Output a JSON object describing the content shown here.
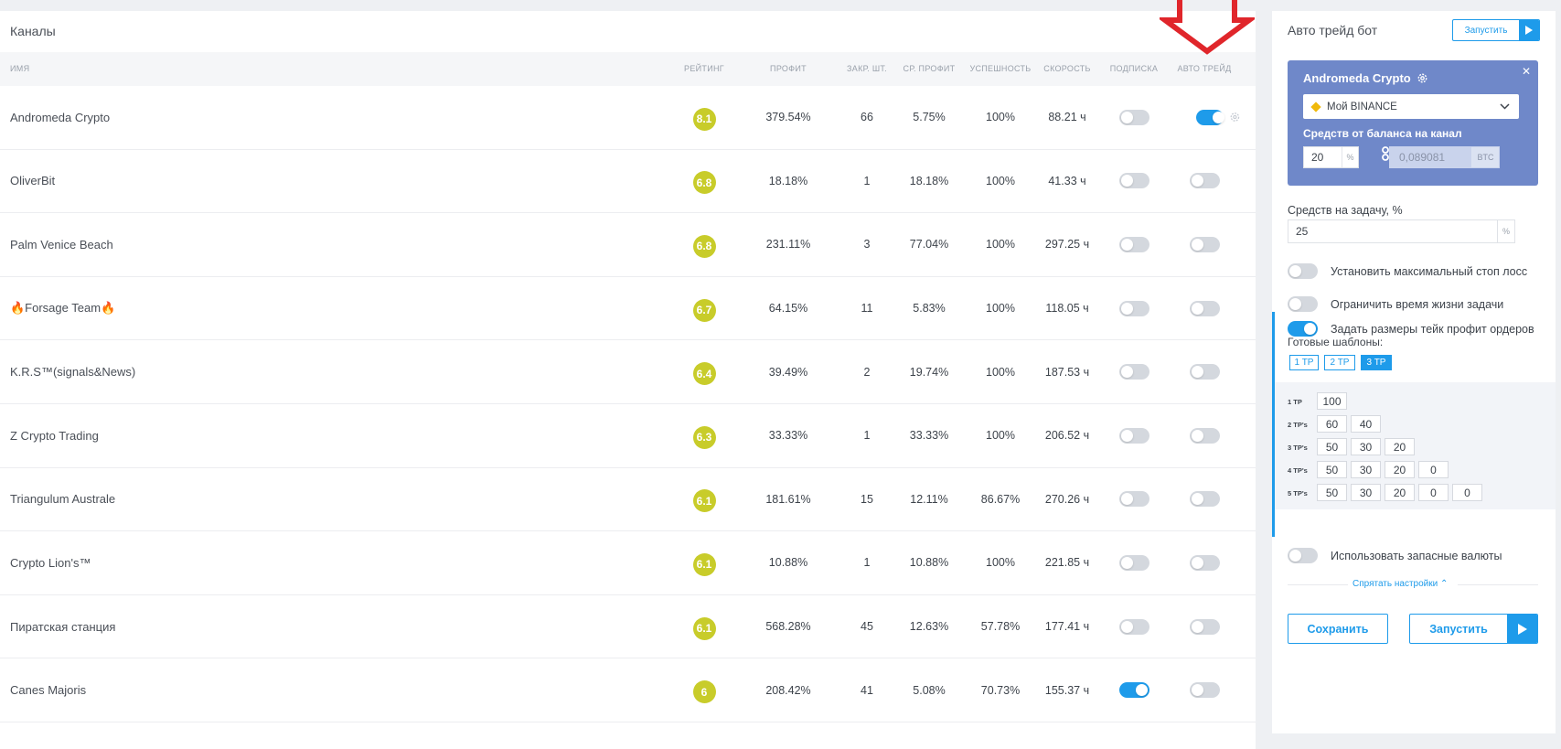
{
  "channels": {
    "title": "Каналы",
    "columns": [
      "ИМЯ",
      "РЕЙТИНГ",
      "ПРОФИТ",
      "ЗАКР. ШТ.",
      "СР. ПРОФИТ",
      "УСПЕШНОСТЬ",
      "СКОРОСТЬ",
      "ПОДПИСКА",
      "АВТО ТРЕЙД"
    ],
    "rows": [
      {
        "name": "Andromeda Crypto",
        "rating": "8.1",
        "profit": "379.54%",
        "closed": "66",
        "avg_profit": "5.75%",
        "success": "100%",
        "speed": "88.21 ч",
        "subscribed": false,
        "auto_trade": true
      },
      {
        "name": "OliverBit",
        "rating": "6.8",
        "profit": "18.18%",
        "closed": "1",
        "avg_profit": "18.18%",
        "success": "100%",
        "speed": "41.33 ч",
        "subscribed": false,
        "auto_trade": false
      },
      {
        "name": "Palm Venice Beach",
        "rating": "6.8",
        "profit": "231.11%",
        "closed": "3",
        "avg_profit": "77.04%",
        "success": "100%",
        "speed": "297.25 ч",
        "subscribed": false,
        "auto_trade": false
      },
      {
        "name": "🔥Forsage Team🔥",
        "rating": "6.7",
        "profit": "64.15%",
        "closed": "11",
        "avg_profit": "5.83%",
        "success": "100%",
        "speed": "118.05 ч",
        "subscribed": false,
        "auto_trade": false
      },
      {
        "name": "K.R.S™(signals&News)",
        "rating": "6.4",
        "profit": "39.49%",
        "closed": "2",
        "avg_profit": "19.74%",
        "success": "100%",
        "speed": "187.53 ч",
        "subscribed": false,
        "auto_trade": false
      },
      {
        "name": "Z Crypto Trading",
        "rating": "6.3",
        "profit": "33.33%",
        "closed": "1",
        "avg_profit": "33.33%",
        "success": "100%",
        "speed": "206.52 ч",
        "subscribed": false,
        "auto_trade": false
      },
      {
        "name": "Triangulum Australe",
        "rating": "6.1",
        "profit": "181.61%",
        "closed": "15",
        "avg_profit": "12.11%",
        "success": "86.67%",
        "speed": "270.26 ч",
        "subscribed": false,
        "auto_trade": false
      },
      {
        "name": "Crypto Lion's™",
        "rating": "6.1",
        "profit": "10.88%",
        "closed": "1",
        "avg_profit": "10.88%",
        "success": "100%",
        "speed": "221.85 ч",
        "subscribed": false,
        "auto_trade": false
      },
      {
        "name": "Пиратская станция",
        "rating": "6.1",
        "profit": "568.28%",
        "closed": "45",
        "avg_profit": "12.63%",
        "success": "57.78%",
        "speed": "177.41 ч",
        "subscribed": false,
        "auto_trade": false
      },
      {
        "name": "Canes Majoris",
        "rating": "6",
        "profit": "208.42%",
        "closed": "41",
        "avg_profit": "5.08%",
        "success": "70.73%",
        "speed": "155.37 ч",
        "subscribed": true,
        "auto_trade": false
      }
    ]
  },
  "bot": {
    "title": "Авто трейд бот",
    "run_small_label": "Запустить",
    "card": {
      "channel": "Andromeda Crypto",
      "exchange": "Мой BINANCE",
      "balance_label": "Средств от баланса на канал",
      "percent_value": "20",
      "percent_unit": "%",
      "amount_value": "0,089081",
      "amount_unit": "BTC"
    },
    "task_label": "Средств на задачу, %",
    "task_value": "25",
    "task_unit": "%",
    "options": [
      {
        "label": "Установить максимальный стоп лосс",
        "on": false
      },
      {
        "label": "Ограничить время жизни задачи",
        "on": false
      },
      {
        "label": "Задать размеры тейк профит ордеров",
        "on": true
      }
    ],
    "templates_label": "Готовые шаблоны:",
    "templates": [
      "1 TP",
      "2 TP",
      "3 TP"
    ],
    "active_template": "3 TP",
    "tp_rows": [
      {
        "label": "1 TP",
        "values": [
          "100"
        ]
      },
      {
        "label": "2 TP's",
        "values": [
          "60",
          "40"
        ]
      },
      {
        "label": "3 TP's",
        "values": [
          "50",
          "30",
          "20"
        ]
      },
      {
        "label": "4 TP's",
        "values": [
          "50",
          "30",
          "20",
          "0"
        ]
      },
      {
        "label": "5 TP's",
        "values": [
          "50",
          "30",
          "20",
          "0",
          "0"
        ]
      }
    ],
    "reserve_label": "Использовать запасные валюты",
    "reserve_on": false,
    "hide_settings": "Спрятать настройки ⌃",
    "save_label": "Сохранить",
    "run_label": "Запустить"
  },
  "colors": {
    "accent": "#1e9bea",
    "rating": "#c8cc2a",
    "card": "#6f88c9",
    "arrow": "#e0262b"
  }
}
